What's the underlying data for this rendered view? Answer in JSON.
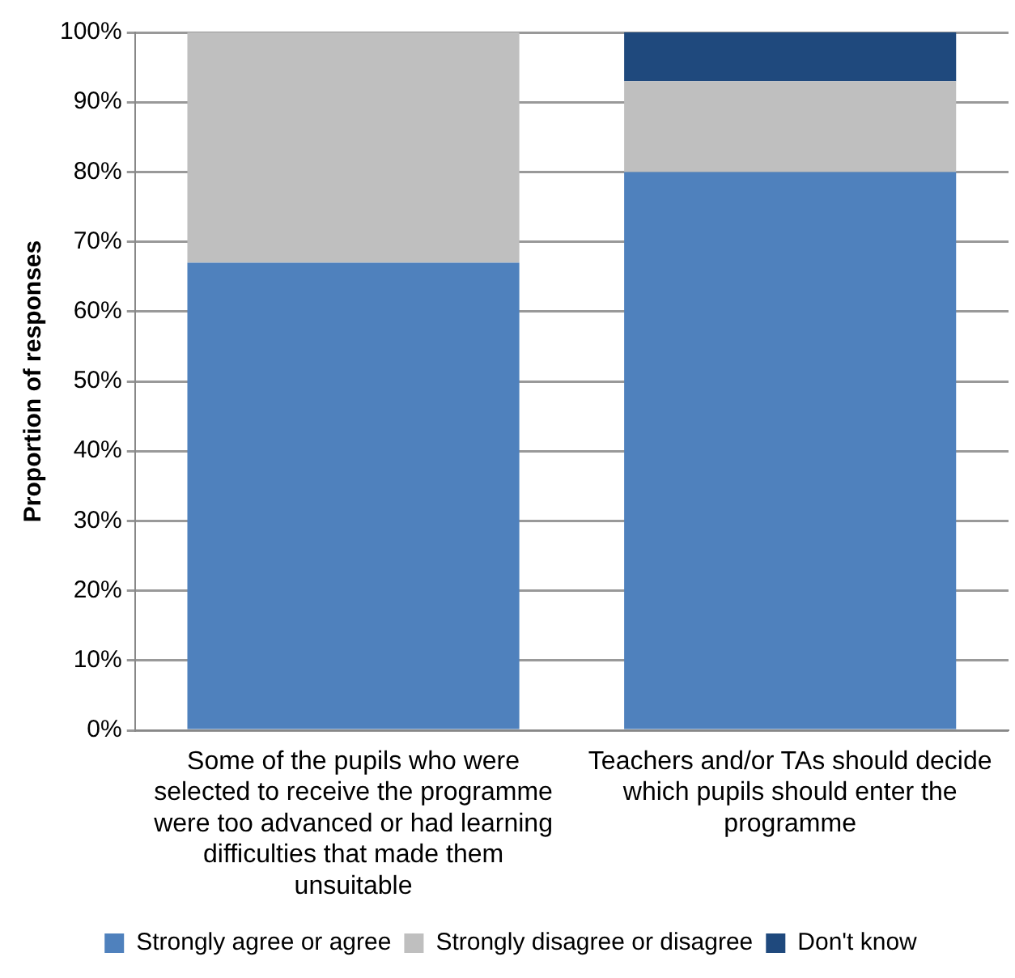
{
  "chart_data": {
    "type": "bar",
    "stacked": true,
    "ylabel": "Proportion of responses",
    "categories": [
      "Some of the pupils who were selected to receive the programme were too advanced or had learning difficulties that made them unsuitable",
      "Teachers and/or TAs should decide which pupils should enter the programme"
    ],
    "series": [
      {
        "name": "Strongly agree or agree",
        "color": "#4f81bd",
        "values": [
          67,
          80
        ]
      },
      {
        "name": "Strongly disagree or disagree",
        "color": "#bfbfbf",
        "values": [
          33,
          13
        ]
      },
      {
        "name": "Don't know",
        "color": "#1f497d",
        "values": [
          null,
          7
        ]
      }
    ],
    "ylim": [
      0,
      100
    ],
    "yticks": [
      {
        "value": 0,
        "label": "0%"
      },
      {
        "value": 10,
        "label": "10%"
      },
      {
        "value": 20,
        "label": "20%"
      },
      {
        "value": 30,
        "label": "30%"
      },
      {
        "value": 40,
        "label": "40%"
      },
      {
        "value": 50,
        "label": "50%"
      },
      {
        "value": 60,
        "label": "60%"
      },
      {
        "value": 70,
        "label": "70%"
      },
      {
        "value": 80,
        "label": "80%"
      },
      {
        "value": 90,
        "label": "90%"
      },
      {
        "value": 100,
        "label": "100%"
      }
    ],
    "grid": "y",
    "legend": "bottom"
  }
}
